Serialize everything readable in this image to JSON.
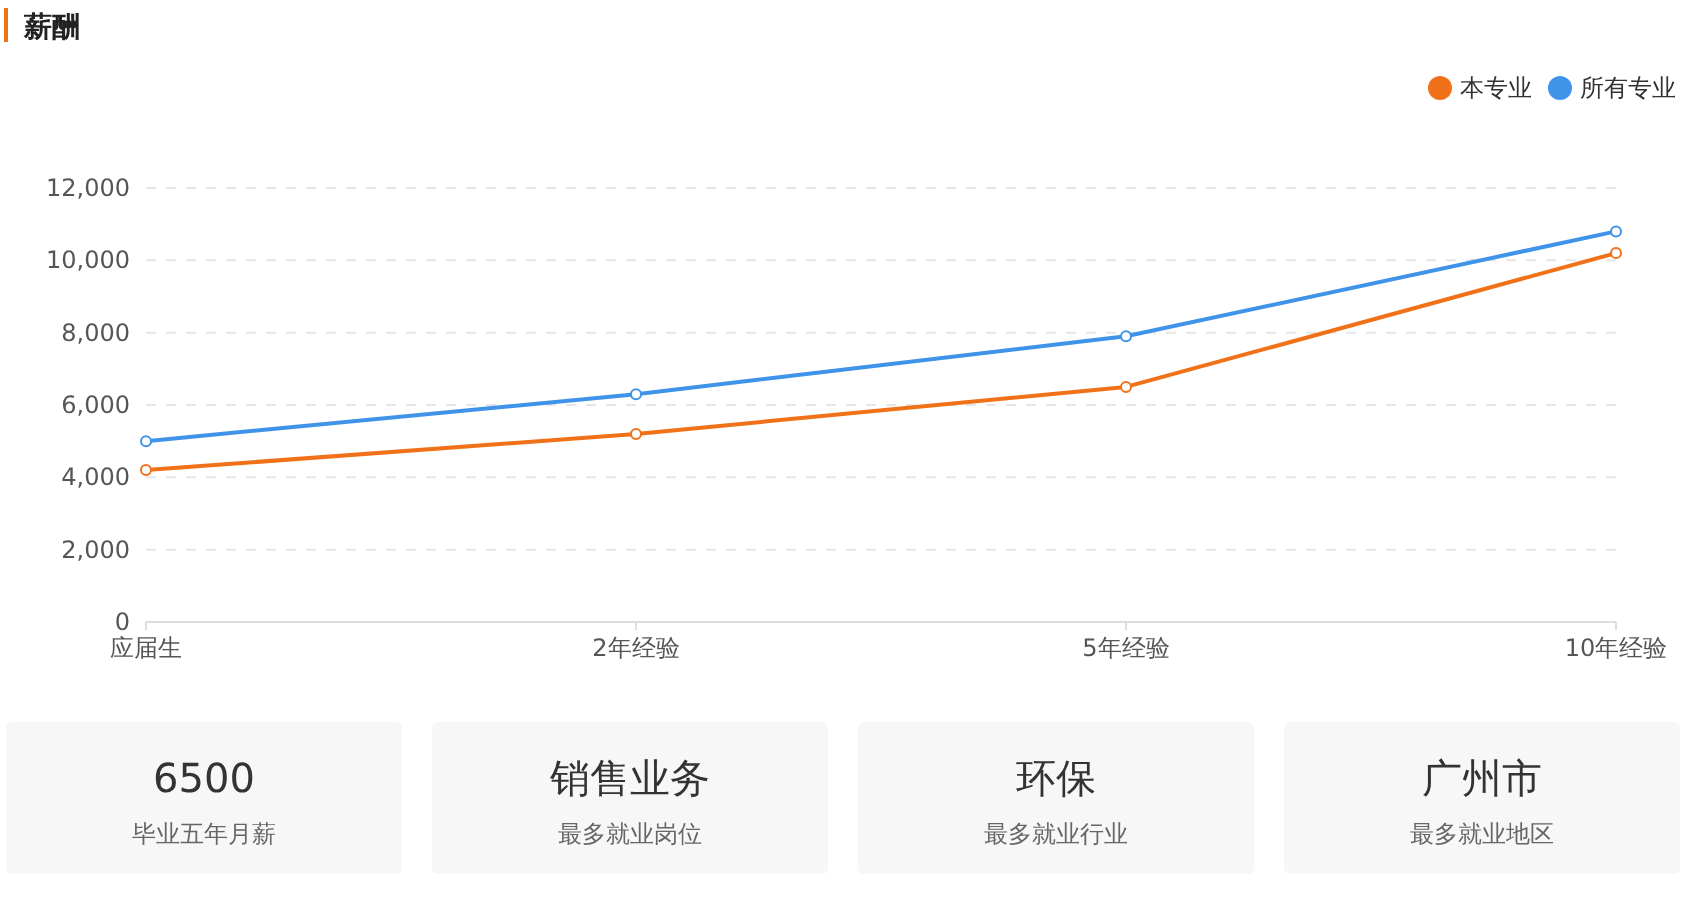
{
  "chart_data": [
    {
      "type": "line",
      "title": "薪酬",
      "categories": [
        "应届生",
        "2年经验",
        "5年经验",
        "10年经验"
      ],
      "series": [
        {
          "name": "本专业",
          "color": "#f07117",
          "values": [
            4200,
            5200,
            6500,
            10200
          ]
        },
        {
          "name": "所有专业",
          "color": "#3f94e9",
          "values": [
            5000,
            6300,
            7900,
            10800
          ]
        }
      ],
      "ylim": [
        0,
        12000
      ],
      "yticks": [
        {
          "value": 0,
          "label": "0"
        },
        {
          "value": 2000,
          "label": "2,000"
        },
        {
          "value": 4000,
          "label": "4,000"
        },
        {
          "value": 6000,
          "label": "6,000"
        },
        {
          "value": 8000,
          "label": "8,000"
        },
        {
          "value": 10000,
          "label": "10,000"
        },
        {
          "value": 12000,
          "label": "12,000"
        }
      ],
      "grid": "y",
      "legend": "top right",
      "marker": "circle",
      "line_style": "solid"
    },
    {
      "type": "other",
      "annotations": [
        "6500",
        "毕业五年月薪",
        "销售业务",
        "最多就业岗位",
        "环保",
        "最多就业行业",
        "广州市",
        "最多就业地区"
      ]
    }
  ]
}
